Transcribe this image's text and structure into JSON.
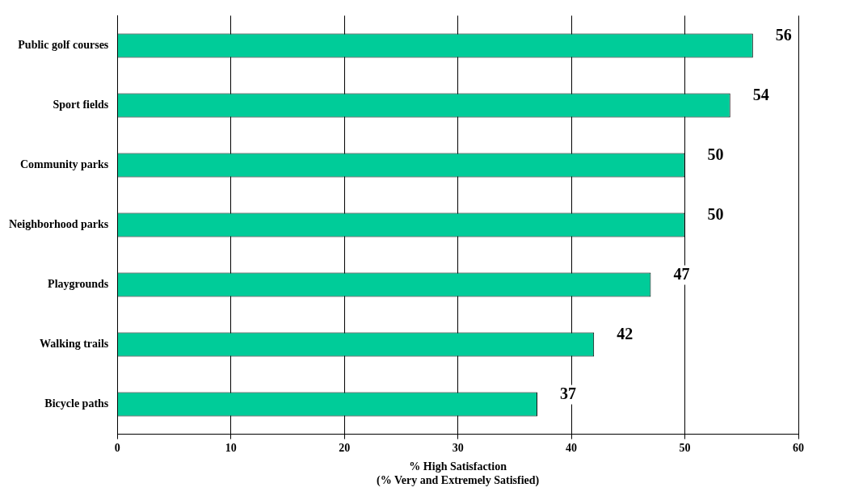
{
  "chart_data": {
    "type": "bar",
    "orientation": "horizontal",
    "categories": [
      "Public golf courses",
      "Sport fields",
      "Community parks",
      "Neighborhood parks",
      "Playgrounds",
      "Walking trails",
      "Bicycle paths"
    ],
    "values": [
      56,
      54,
      50,
      50,
      47,
      42,
      37
    ],
    "color": "#00cc99",
    "xlim": [
      0,
      60
    ],
    "xticks": [
      0,
      10,
      20,
      30,
      40,
      50,
      60
    ],
    "grid": "x",
    "data_labels": true,
    "xlabel": "% High Satisfaction\n(% Very and Extremely Satisfied)"
  }
}
